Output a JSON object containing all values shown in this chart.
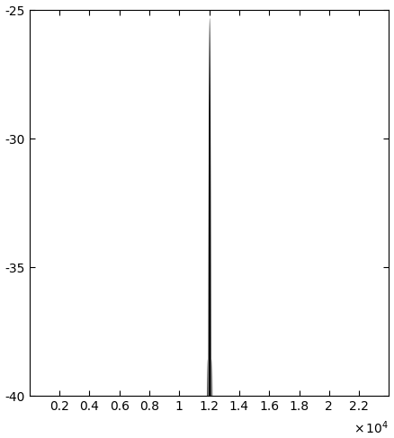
{
  "xlim": [
    0,
    24000
  ],
  "ylim": [
    -40,
    -25
  ],
  "yticks": [
    -40,
    -35,
    -30,
    -25
  ],
  "xticks": [
    2000,
    4000,
    6000,
    8000,
    10000,
    12000,
    14000,
    16000,
    18000,
    20000,
    22000
  ],
  "xticklabels": [
    "0.2",
    "0.4",
    "0.6",
    "0.8",
    "1",
    "1.2",
    "1.4",
    "1.6",
    "1.8",
    "2",
    "2.2"
  ],
  "N": 24000,
  "n_elements": 120,
  "d_over_lambda": 1.0,
  "psi_range": [
    -5.5,
    5.5
  ],
  "db_peak": -25.3,
  "db_floor": -40,
  "background_color": "#ffffff",
  "line_color": "#000000",
  "figsize": [
    4.38,
    4.87
  ],
  "dpi": 100
}
